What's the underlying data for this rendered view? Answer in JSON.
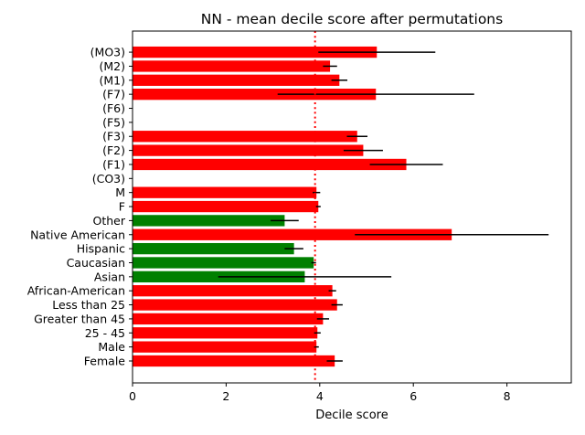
{
  "chart_data": {
    "type": "bar",
    "orientation": "horizontal",
    "title": "NN - mean decile score after permutations",
    "xlabel": "Decile score",
    "ylabel": "",
    "xlim": [
      0,
      9.4
    ],
    "xticks": [
      0,
      2,
      4,
      6,
      8
    ],
    "grid": false,
    "reference_line": {
      "x": 3.9,
      "color": "#ff0000",
      "style": "dotted"
    },
    "colors": {
      "increase": "#ff0000",
      "decrease": "#008000",
      "error": "#000000"
    },
    "bars": [
      {
        "label": "Female",
        "value": 4.32,
        "err": 0.17,
        "color": "red"
      },
      {
        "label": "Male",
        "value": 3.93,
        "err": 0.05,
        "color": "red"
      },
      {
        "label": "25 - 45",
        "value": 3.95,
        "err": 0.07,
        "color": "red"
      },
      {
        "label": "Greater than 45",
        "value": 4.07,
        "err": 0.13,
        "color": "red"
      },
      {
        "label": "Less than 25",
        "value": 4.37,
        "err": 0.12,
        "color": "red"
      },
      {
        "label": "African-American",
        "value": 4.27,
        "err": 0.08,
        "color": "red"
      },
      {
        "label": "Asian",
        "value": 3.68,
        "err": 1.85,
        "color": "green"
      },
      {
        "label": "Caucasian",
        "value": 3.87,
        "err": 0.05,
        "color": "green"
      },
      {
        "label": "Hispanic",
        "value": 3.45,
        "err": 0.2,
        "color": "green"
      },
      {
        "label": "Native American",
        "value": 6.82,
        "err": 2.07,
        "color": "red"
      },
      {
        "label": "Other",
        "value": 3.25,
        "err": 0.3,
        "color": "green"
      },
      {
        "label": "F",
        "value": 3.97,
        "err": 0.05,
        "color": "red"
      },
      {
        "label": "M",
        "value": 3.93,
        "err": 0.08,
        "color": "red"
      },
      {
        "label": "(CO3)",
        "value": 0,
        "err": 0,
        "color": "red"
      },
      {
        "label": "(F1)",
        "value": 5.85,
        "err": 0.78,
        "color": "red"
      },
      {
        "label": "(F2)",
        "value": 4.93,
        "err": 0.42,
        "color": "red"
      },
      {
        "label": "(F3)",
        "value": 4.8,
        "err": 0.22,
        "color": "red"
      },
      {
        "label": "(F5)",
        "value": 0,
        "err": 0,
        "color": "red"
      },
      {
        "label": "(F6)",
        "value": 0,
        "err": 0,
        "color": "red"
      },
      {
        "label": "(F7)",
        "value": 5.2,
        "err": 2.1,
        "color": "red"
      },
      {
        "label": "(M1)",
        "value": 4.42,
        "err": 0.17,
        "color": "red"
      },
      {
        "label": "(M2)",
        "value": 4.22,
        "err": 0.15,
        "color": "red"
      },
      {
        "label": "(MO3)",
        "value": 5.22,
        "err": 1.25,
        "color": "red"
      }
    ]
  }
}
